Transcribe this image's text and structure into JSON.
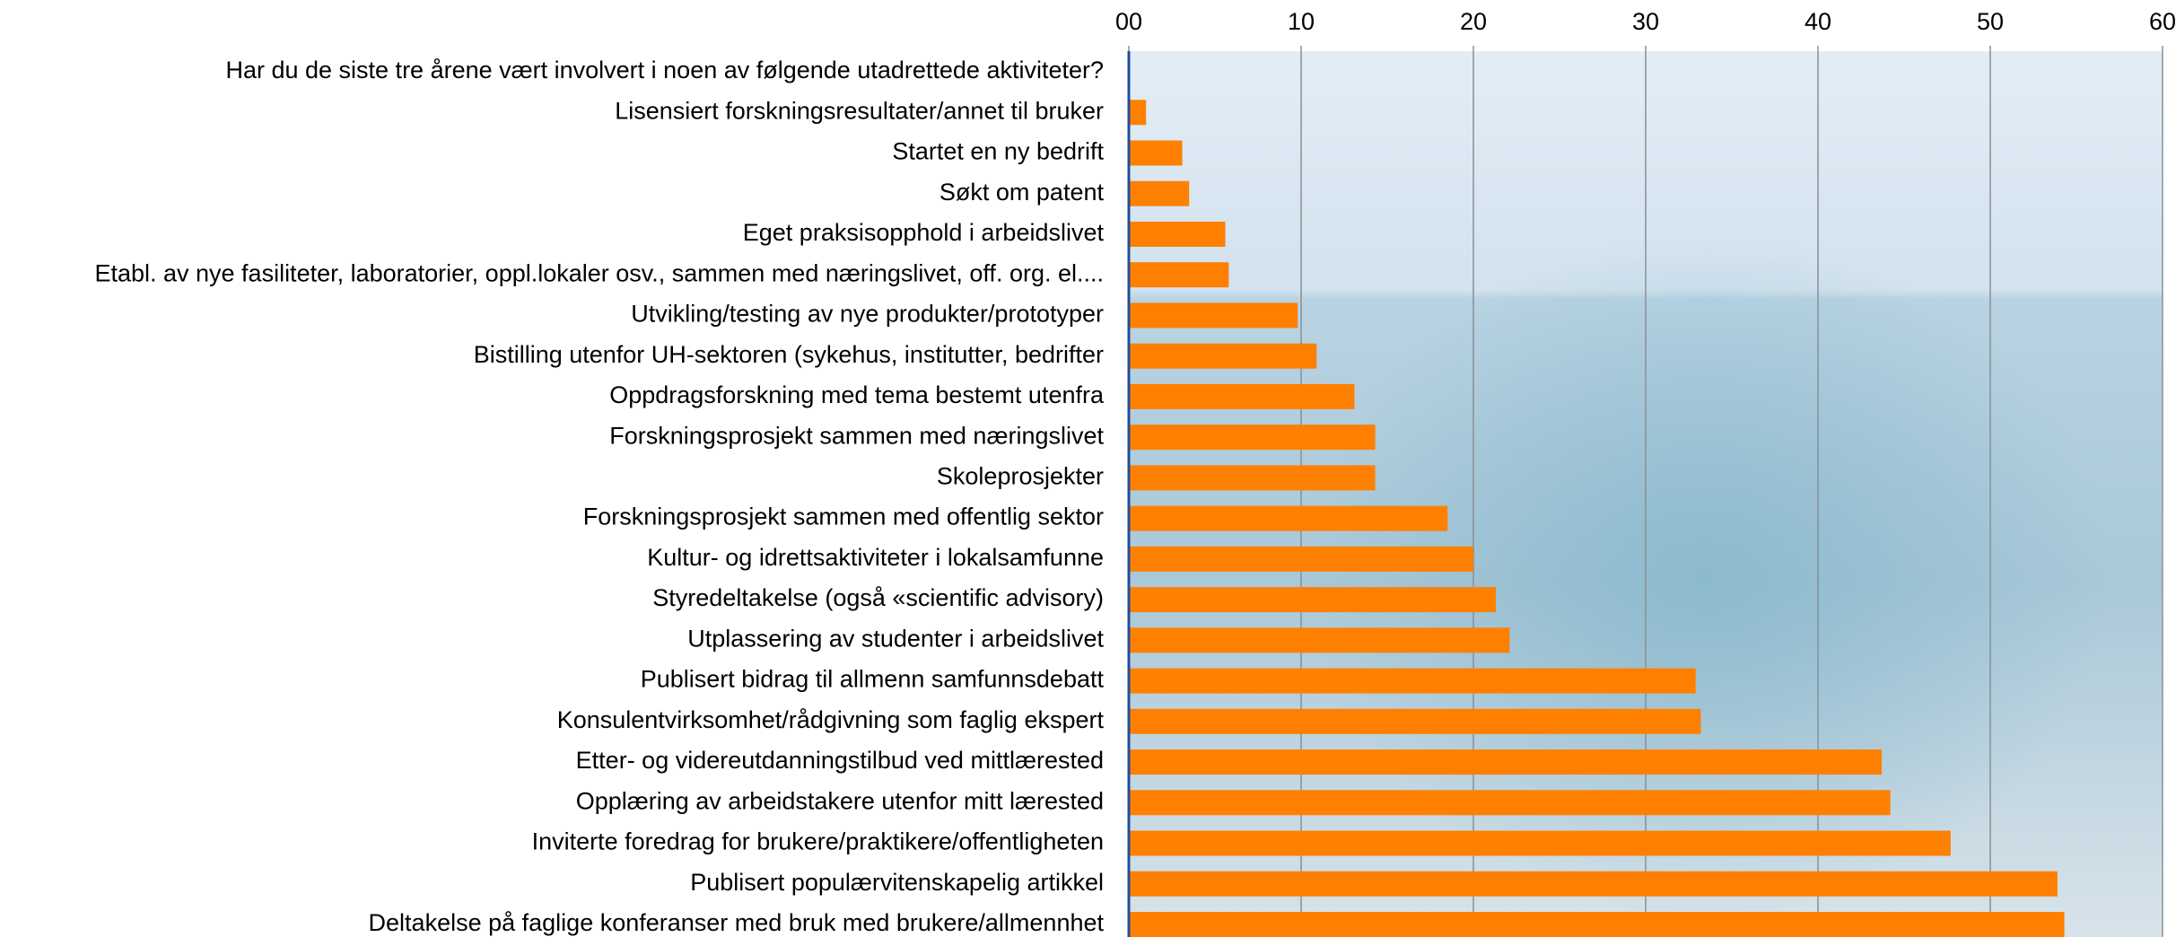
{
  "chart_data": {
    "type": "bar",
    "orientation": "horizontal",
    "categories": [
      "Har du de siste tre årene vært involvert i noen av følgende utadrettede aktiviteter?",
      "Lisensiert forskningsresultater/annet til bruker",
      "Startet en ny bedrift",
      "Søkt om patent",
      "Eget praksisopphold i arbeidslivet",
      "Etabl. av nye fasiliteter, laboratorier, oppl.lokaler osv., sammen med næringslivet, off. org. el....",
      "Utvikling/testing av nye produkter/prototyper",
      "Bistilling utenfor UH-sektoren (sykehus, institutter, bedrifter",
      "Oppdragsforskning med tema bestemt utenfra",
      "Forskningsprosjekt sammen med næringslivet",
      "Skoleprosjekter",
      "Forskningsprosjekt sammen med offentlig sektor",
      "Kultur- og idrettsaktiviteter i lokalsamfunne",
      "Styredeltakelse (også «scientific advisory)",
      "Utplassering av studenter i arbeidslivet",
      "Publisert bidrag til allmenn samfunnsdebatt",
      "Konsulentvirksomhet/rådgivning som faglig ekspert",
      "Etter- og videreutdanningstilbud ved mittlærested",
      "Opplæring av arbeidstakere utenfor mitt lærested",
      "Inviterte foredrag for brukere/praktikere/offentligheten",
      "Publisert populærvitenskapelig artikkel",
      "Deltakelse på faglige konferanser med bruk med brukere/allmennhet"
    ],
    "values": [
      null,
      1.0,
      3.1,
      3.5,
      5.6,
      5.8,
      9.8,
      10.9,
      13.1,
      14.3,
      14.3,
      18.5,
      20.0,
      21.3,
      22.1,
      32.9,
      33.2,
      43.7,
      44.2,
      47.7,
      53.9,
      54.3
    ],
    "color": "#ff8000",
    "xlim": [
      0,
      60
    ],
    "xticks": [
      {
        "value": 0,
        "label": "00"
      },
      10,
      20,
      30,
      40,
      50,
      60
    ],
    "grid": true
  }
}
